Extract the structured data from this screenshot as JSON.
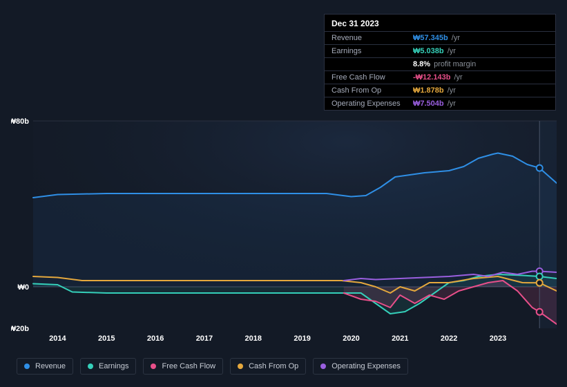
{
  "chart": {
    "type": "line-area",
    "background_color": "#131a26",
    "grid_color": "#2a3040",
    "ylim": [
      -20,
      80
    ],
    "yticks": [
      {
        "v": 80,
        "label": "₩80b"
      },
      {
        "v": 0,
        "label": "₩0"
      },
      {
        "v": -20,
        "label": "-₩20b"
      }
    ],
    "x_years": [
      2013.5,
      2024.2
    ],
    "xticks": [
      "2014",
      "2015",
      "2016",
      "2017",
      "2018",
      "2019",
      "2020",
      "2021",
      "2022",
      "2023"
    ],
    "future_start": 2023.85,
    "series": {
      "revenue": {
        "name": "Revenue",
        "color": "#2f8fe6",
        "fill_opacity": 0.08,
        "line_width": 2,
        "data": [
          [
            2013.5,
            43
          ],
          [
            2014,
            44.5
          ],
          [
            2015,
            45
          ],
          [
            2016,
            45
          ],
          [
            2017,
            45
          ],
          [
            2018,
            45
          ],
          [
            2019,
            45
          ],
          [
            2019.5,
            45
          ],
          [
            2020,
            43.5
          ],
          [
            2020.3,
            44
          ],
          [
            2020.6,
            48
          ],
          [
            2020.9,
            53
          ],
          [
            2021.2,
            54
          ],
          [
            2021.5,
            55
          ],
          [
            2022,
            56
          ],
          [
            2022.3,
            58
          ],
          [
            2022.6,
            62
          ],
          [
            2022.9,
            64
          ],
          [
            2023,
            64.5
          ],
          [
            2023.3,
            63
          ],
          [
            2023.6,
            59
          ],
          [
            2023.85,
            57.3
          ],
          [
            2024.2,
            50
          ]
        ]
      },
      "earnings": {
        "name": "Earnings",
        "color": "#35d0ba",
        "fill_opacity": 0.1,
        "line_width": 2,
        "data": [
          [
            2013.5,
            1.5
          ],
          [
            2014,
            1
          ],
          [
            2014.3,
            -2.5
          ],
          [
            2015,
            -3
          ],
          [
            2016,
            -3
          ],
          [
            2017,
            -3
          ],
          [
            2018,
            -3
          ],
          [
            2019,
            -3
          ],
          [
            2019.8,
            -3
          ],
          [
            2020.2,
            -3
          ],
          [
            2020.5,
            -8
          ],
          [
            2020.8,
            -13
          ],
          [
            2021.1,
            -12
          ],
          [
            2021.4,
            -8
          ],
          [
            2021.7,
            -3
          ],
          [
            2022,
            2
          ],
          [
            2022.3,
            3
          ],
          [
            2022.6,
            5
          ],
          [
            2023,
            6
          ],
          [
            2023.5,
            5.5
          ],
          [
            2023.85,
            5.0
          ],
          [
            2024.2,
            4
          ]
        ]
      },
      "free_cash_flow": {
        "name": "Free Cash Flow",
        "color": "#e84f8a",
        "fill_opacity": 0.15,
        "line_width": 2,
        "start": 2019.85,
        "data": [
          [
            2019.85,
            -3
          ],
          [
            2020.2,
            -6
          ],
          [
            2020.5,
            -7
          ],
          [
            2020.8,
            -10
          ],
          [
            2021.0,
            -4
          ],
          [
            2021.3,
            -8
          ],
          [
            2021.6,
            -4
          ],
          [
            2021.9,
            -6
          ],
          [
            2022.2,
            -2
          ],
          [
            2022.5,
            0
          ],
          [
            2022.8,
            2
          ],
          [
            2023.1,
            3
          ],
          [
            2023.4,
            -2
          ],
          [
            2023.7,
            -10
          ],
          [
            2023.85,
            -12.1
          ],
          [
            2024.2,
            -18
          ]
        ]
      },
      "cash_from_op": {
        "name": "Cash From Op",
        "color": "#e5a83d",
        "fill_opacity": 0.0,
        "line_width": 2,
        "data": [
          [
            2013.5,
            5
          ],
          [
            2014,
            4.5
          ],
          [
            2014.5,
            3
          ],
          [
            2015,
            3
          ],
          [
            2016,
            3
          ],
          [
            2017,
            3
          ],
          [
            2018,
            3
          ],
          [
            2019,
            3
          ],
          [
            2019.8,
            3
          ],
          [
            2020.2,
            2
          ],
          [
            2020.5,
            0
          ],
          [
            2020.8,
            -3
          ],
          [
            2021,
            0
          ],
          [
            2021.3,
            -2
          ],
          [
            2021.6,
            2
          ],
          [
            2022,
            2
          ],
          [
            2022.5,
            4
          ],
          [
            2023,
            5
          ],
          [
            2023.5,
            2
          ],
          [
            2023.85,
            1.9
          ],
          [
            2024.2,
            -2
          ]
        ]
      },
      "operating_expenses": {
        "name": "Operating Expenses",
        "color": "#9a5fe0",
        "fill_opacity": 0.0,
        "line_width": 2,
        "start": 2019.85,
        "data": [
          [
            2019.85,
            3
          ],
          [
            2020.2,
            4
          ],
          [
            2020.5,
            3.5
          ],
          [
            2021,
            4
          ],
          [
            2021.5,
            4.5
          ],
          [
            2022,
            5
          ],
          [
            2022.5,
            6
          ],
          [
            2022.8,
            5
          ],
          [
            2023.1,
            7
          ],
          [
            2023.4,
            6
          ],
          [
            2023.7,
            7.5
          ],
          [
            2023.85,
            7.5
          ],
          [
            2024.2,
            7
          ]
        ]
      }
    },
    "marker_x": 2023.85,
    "markers": [
      {
        "series": "revenue",
        "y": 57.3,
        "color": "#2f8fe6"
      },
      {
        "series": "operating_expenses",
        "y": 7.5,
        "color": "#9a5fe0"
      },
      {
        "series": "earnings",
        "y": 5.0,
        "color": "#35d0ba"
      },
      {
        "series": "cash_from_op",
        "y": 1.9,
        "color": "#e5a83d"
      },
      {
        "series": "free_cash_flow",
        "y": -12.1,
        "color": "#e84f8a"
      }
    ]
  },
  "tooltip": {
    "date": "Dec 31 2023",
    "rows": [
      {
        "label": "Revenue",
        "value": "₩57.345b",
        "suffix": "/yr",
        "color": "#2f8fe6"
      },
      {
        "label": "Earnings",
        "value": "₩5.038b",
        "suffix": "/yr",
        "color": "#35d0ba"
      },
      {
        "label": "",
        "value": "8.8%",
        "suffix": "profit margin",
        "color": "#ffffff"
      },
      {
        "label": "Free Cash Flow",
        "value": "-₩12.143b",
        "suffix": "/yr",
        "color": "#e84f8a"
      },
      {
        "label": "Cash From Op",
        "value": "₩1.878b",
        "suffix": "/yr",
        "color": "#e5a83d"
      },
      {
        "label": "Operating Expenses",
        "value": "₩7.504b",
        "suffix": "/yr",
        "color": "#9a5fe0"
      }
    ]
  },
  "legend": [
    {
      "label": "Revenue",
      "color": "#2f8fe6"
    },
    {
      "label": "Earnings",
      "color": "#35d0ba"
    },
    {
      "label": "Free Cash Flow",
      "color": "#e84f8a"
    },
    {
      "label": "Cash From Op",
      "color": "#e5a83d"
    },
    {
      "label": "Operating Expenses",
      "color": "#9a5fe0"
    }
  ]
}
